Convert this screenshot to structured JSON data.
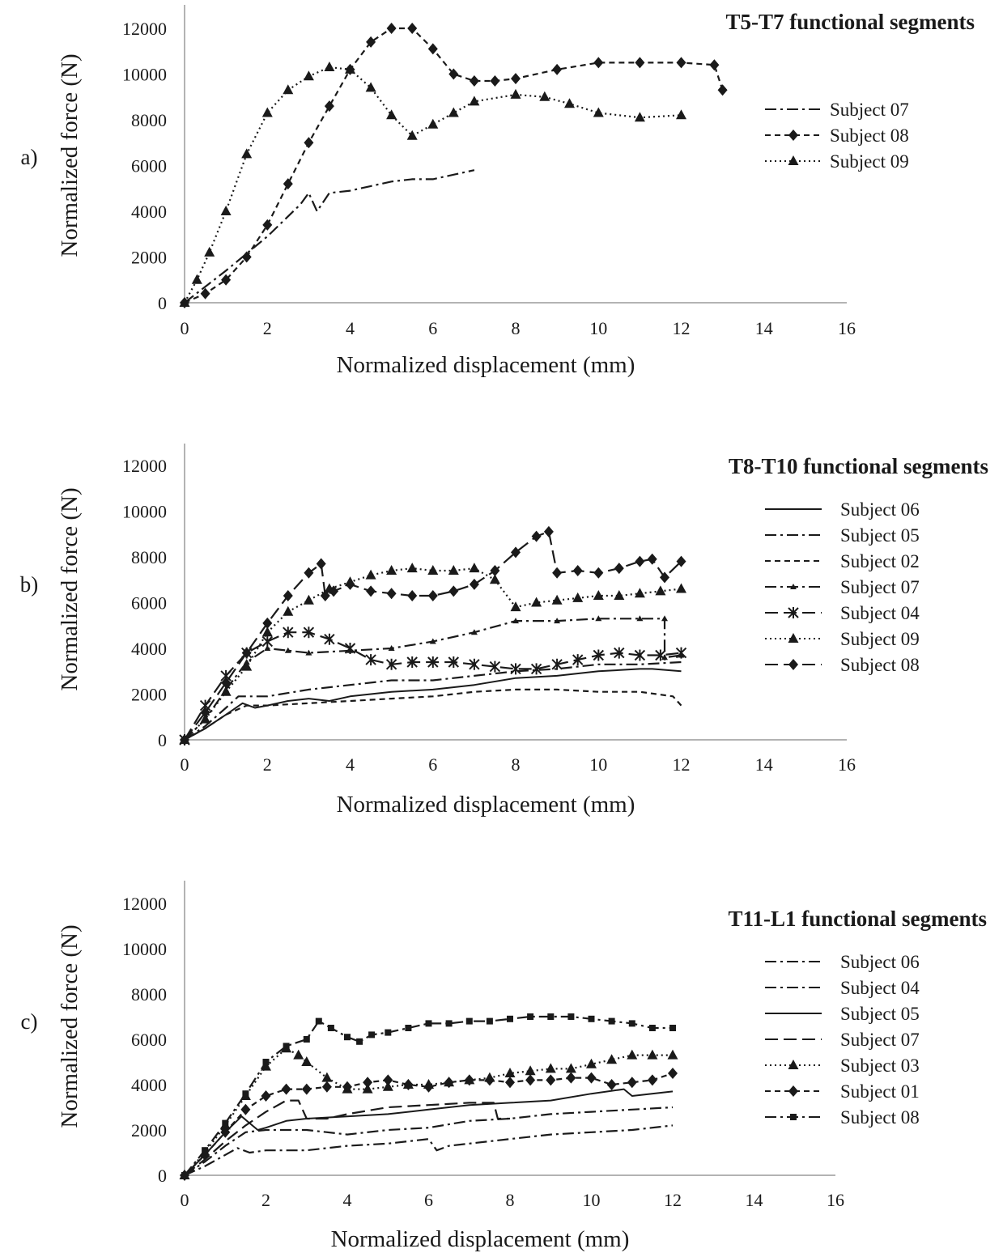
{
  "chart_data": [
    {
      "type": "line",
      "panel_label": "a)",
      "title": "T5-T7 functional segments",
      "xlabel": "Normalized displacement (mm)",
      "ylabel": "Normalized force (N)",
      "xlim": [
        0,
        16
      ],
      "ylim": [
        0,
        12000
      ],
      "x_ticks": [
        "0",
        "2",
        "4",
        "6",
        "8",
        "10",
        "12",
        "14",
        "16"
      ],
      "y_ticks": [
        "0",
        "2000",
        "4000",
        "6000",
        "8000",
        "10000",
        "12000"
      ],
      "grid": false,
      "legend_position": "right",
      "series": [
        {
          "name": "Subject 07",
          "line": "dashdot",
          "marker": "none",
          "x": [
            0,
            1,
            2,
            2.8,
            3.0,
            3.2,
            3.5,
            4.0,
            4.5,
            5.0,
            5.5,
            6.0,
            6.5,
            7.0
          ],
          "y": [
            0,
            1400,
            2900,
            4300,
            4800,
            4000,
            4800,
            4900,
            5100,
            5300,
            5400,
            5400,
            5600,
            5800
          ]
        },
        {
          "name": "Subject 08",
          "line": "dash",
          "marker": "diamond",
          "x": [
            0,
            0.5,
            1.0,
            1.5,
            2.0,
            2.5,
            3.0,
            3.5,
            4.0,
            4.5,
            5.0,
            5.5,
            6.0,
            6.5,
            7.0,
            7.5,
            8.0,
            9.0,
            10.0,
            11.0,
            12.0,
            12.8,
            13.0
          ],
          "y": [
            0,
            400,
            1000,
            2000,
            3400,
            5200,
            7000,
            8600,
            10200,
            11400,
            12000,
            12000,
            11100,
            10000,
            9700,
            9700,
            9800,
            10200,
            10500,
            10500,
            10500,
            10400,
            9300
          ]
        },
        {
          "name": "Subject 09",
          "line": "dot",
          "marker": "triangle",
          "x": [
            0,
            0.3,
            0.6,
            1.0,
            1.5,
            2.0,
            2.5,
            3.0,
            3.5,
            4.0,
            4.5,
            5.0,
            5.5,
            6.0,
            6.5,
            7.0,
            8.0,
            8.7,
            9.3,
            10.0,
            11.0,
            12.0
          ],
          "y": [
            0,
            1000,
            2200,
            4000,
            6500,
            8300,
            9300,
            9900,
            10300,
            10200,
            9400,
            8200,
            7300,
            7800,
            8300,
            8800,
            9100,
            9000,
            8700,
            8300,
            8100,
            8200
          ]
        }
      ]
    },
    {
      "type": "line",
      "panel_label": "b)",
      "title": "T8-T10 functional segments",
      "xlabel": "Normalized displacement (mm)",
      "ylabel": "Normalized force (N)",
      "xlim": [
        0,
        16
      ],
      "ylim": [
        0,
        12000
      ],
      "x_ticks": [
        "0",
        "2",
        "4",
        "6",
        "8",
        "10",
        "12",
        "14",
        "16"
      ],
      "y_ticks": [
        "0",
        "2000",
        "4000",
        "6000",
        "8000",
        "10000",
        "12000"
      ],
      "grid": false,
      "legend_position": "right",
      "series": [
        {
          "name": "Subject 06",
          "line": "solid",
          "marker": "none",
          "x": [
            0,
            0.5,
            1.0,
            1.4,
            1.7,
            2.0,
            2.5,
            3.0,
            3.5,
            4.0,
            5.0,
            6.0,
            7.0,
            8.0,
            9.0,
            10.0,
            11.0,
            11.3,
            12.0
          ],
          "y": [
            0,
            500,
            1100,
            1600,
            1400,
            1500,
            1700,
            1800,
            1700,
            1900,
            2100,
            2200,
            2400,
            2700,
            2800,
            3000,
            3100,
            3100,
            3000
          ]
        },
        {
          "name": "Subject 05",
          "line": "dashdot",
          "marker": "none",
          "x": [
            0,
            0.5,
            1.0,
            1.3,
            1.6,
            2.0,
            3.0,
            4.0,
            5.0,
            6.0,
            7.0,
            8.0,
            9.0,
            10.0,
            11.0,
            12.0
          ],
          "y": [
            0,
            600,
            1400,
            1900,
            1900,
            1900,
            2200,
            2400,
            2600,
            2600,
            2800,
            3000,
            3100,
            3300,
            3300,
            3400
          ]
        },
        {
          "name": "Subject 02",
          "line": "dash",
          "marker": "none",
          "x": [
            0,
            0.5,
            1.0,
            1.5,
            2.0,
            3.0,
            4.0,
            5.0,
            6.0,
            7.0,
            8.0,
            9.0,
            10.0,
            11.0,
            11.8,
            12.0
          ],
          "y": [
            0,
            500,
            1100,
            1500,
            1500,
            1600,
            1700,
            1800,
            1900,
            2100,
            2200,
            2200,
            2100,
            2100,
            1900,
            1500
          ]
        },
        {
          "name": "Subject 07",
          "line": "dashdot",
          "marker": "small-triangle",
          "x": [
            0,
            0.5,
            1.0,
            1.5,
            2.0,
            2.5,
            3.0,
            4.0,
            5.0,
            6.0,
            7.0,
            8.0,
            9.0,
            10.0,
            11.0,
            11.6,
            11.6,
            12.0
          ],
          "y": [
            0,
            900,
            2200,
            3400,
            4000,
            3900,
            3800,
            3900,
            4000,
            4300,
            4700,
            5200,
            5200,
            5300,
            5300,
            5300,
            3600,
            3700
          ]
        },
        {
          "name": "Subject 04",
          "line": "longdash",
          "marker": "asterisk",
          "x": [
            0,
            0.5,
            1.0,
            1.5,
            2.0,
            2.5,
            3.0,
            3.5,
            4.0,
            4.5,
            5.0,
            5.5,
            6.0,
            6.5,
            7.0,
            7.5,
            8.0,
            8.5,
            9.0,
            9.5,
            10.0,
            10.5,
            11.0,
            11.5,
            12.0
          ],
          "y": [
            0,
            1500,
            2800,
            3800,
            4300,
            4700,
            4700,
            4400,
            4000,
            3500,
            3300,
            3400,
            3400,
            3400,
            3300,
            3200,
            3100,
            3100,
            3300,
            3500,
            3700,
            3800,
            3700,
            3700,
            3800
          ]
        },
        {
          "name": "Subject 09",
          "line": "dot",
          "marker": "triangle",
          "x": [
            0,
            0.5,
            1.0,
            1.5,
            2.0,
            2.5,
            3.0,
            3.5,
            4.0,
            4.5,
            5.0,
            5.5,
            6.0,
            6.5,
            7.0,
            7.5,
            8.0,
            8.5,
            9.0,
            9.5,
            10.0,
            10.5,
            11.0,
            11.5,
            12.0
          ],
          "y": [
            0,
            900,
            2100,
            3200,
            4700,
            5600,
            6100,
            6600,
            6900,
            7200,
            7400,
            7500,
            7400,
            7400,
            7500,
            7000,
            5800,
            6000,
            6100,
            6200,
            6300,
            6300,
            6400,
            6500,
            6600
          ]
        },
        {
          "name": "Subject 08",
          "line": "longdash",
          "marker": "diamond",
          "x": [
            0,
            0.5,
            1.0,
            1.5,
            2.0,
            2.5,
            3.0,
            3.3,
            3.4,
            3.6,
            4.0,
            4.5,
            5.0,
            5.5,
            6.0,
            6.5,
            7.0,
            7.5,
            8.0,
            8.5,
            8.8,
            9.0,
            9.5,
            10.0,
            10.5,
            11.0,
            11.3,
            11.6,
            12.0
          ],
          "y": [
            0,
            1200,
            2500,
            3800,
            5100,
            6300,
            7300,
            7700,
            6300,
            6500,
            6800,
            6500,
            6400,
            6300,
            6300,
            6500,
            6800,
            7400,
            8200,
            8900,
            9100,
            7300,
            7400,
            7300,
            7500,
            7800,
            7900,
            7100,
            7800
          ]
        }
      ]
    },
    {
      "type": "line",
      "panel_label": "c)",
      "title": "T11-L1 functional segments",
      "xlabel": "Normalized displacement (mm)",
      "ylabel": "Normalized force (N)",
      "xlim": [
        0,
        16
      ],
      "ylim": [
        0,
        12000
      ],
      "x_ticks": [
        "0",
        "2",
        "4",
        "6",
        "8",
        "10",
        "12",
        "14",
        "16"
      ],
      "y_ticks": [
        "0",
        "2000",
        "4000",
        "6000",
        "8000",
        "10000",
        "12000"
      ],
      "grid": false,
      "legend_position": "right",
      "series": [
        {
          "name": "Subject 06",
          "line": "dashdot",
          "marker": "none",
          "x": [
            0,
            0.5,
            1.0,
            1.3,
            1.6,
            2.0,
            3.0,
            4.0,
            5.0,
            6.0,
            6.2,
            6.5,
            7.0,
            8.0,
            9.0,
            10.0,
            11.0,
            12.0
          ],
          "y": [
            0,
            400,
            900,
            1200,
            1000,
            1100,
            1100,
            1300,
            1400,
            1600,
            1100,
            1300,
            1400,
            1600,
            1800,
            1900,
            2000,
            2200
          ]
        },
        {
          "name": "Subject 04",
          "line": "dashdot",
          "marker": "none",
          "x": [
            0,
            0.5,
            1.0,
            1.5,
            2.0,
            3.0,
            4.0,
            5.0,
            6.0,
            7.0,
            8.0,
            9.0,
            10.0,
            11.0,
            12.0
          ],
          "y": [
            0,
            600,
            1300,
            1900,
            2000,
            2000,
            1800,
            2000,
            2100,
            2400,
            2500,
            2700,
            2800,
            2900,
            3000
          ]
        },
        {
          "name": "Subject 05",
          "line": "solid",
          "marker": "none",
          "x": [
            0,
            0.5,
            1.0,
            1.4,
            1.6,
            1.8,
            2.0,
            2.5,
            3.0,
            4.0,
            5.0,
            6.0,
            7.0,
            8.0,
            9.0,
            10.0,
            10.8,
            11.0,
            12.0
          ],
          "y": [
            0,
            900,
            1900,
            2600,
            2300,
            2000,
            2100,
            2400,
            2500,
            2600,
            2700,
            2900,
            3100,
            3200,
            3300,
            3600,
            3800,
            3500,
            3700
          ]
        },
        {
          "name": "Subject 07",
          "line": "longdash",
          "marker": "none",
          "x": [
            0,
            0.5,
            1.0,
            1.5,
            2.0,
            2.5,
            2.8,
            3.0,
            3.5,
            4.0,
            5.0,
            6.0,
            7.0,
            7.6,
            7.7,
            8.0
          ],
          "y": [
            0,
            700,
            1500,
            2200,
            2800,
            3300,
            3300,
            2500,
            2500,
            2700,
            3000,
            3100,
            3200,
            3200,
            2500,
            2500
          ]
        },
        {
          "name": "Subject 03",
          "line": "dot",
          "marker": "triangle",
          "x": [
            0,
            0.5,
            1.0,
            1.5,
            2.0,
            2.5,
            2.8,
            3.0,
            3.5,
            4.0,
            4.5,
            5.0,
            5.5,
            6.0,
            6.5,
            7.0,
            7.5,
            8.0,
            8.5,
            9.0,
            9.5,
            10.0,
            10.5,
            11.0,
            11.5,
            12.0
          ],
          "y": [
            0,
            1000,
            2200,
            3500,
            4800,
            5600,
            5300,
            5000,
            4300,
            3800,
            3800,
            3900,
            4000,
            4000,
            4100,
            4200,
            4300,
            4500,
            4600,
            4700,
            4700,
            4900,
            5100,
            5300,
            5300,
            5300
          ]
        },
        {
          "name": "Subject 01",
          "line": "dash",
          "marker": "diamond",
          "x": [
            0,
            0.5,
            1.0,
            1.5,
            2.0,
            2.5,
            3.0,
            3.5,
            4.0,
            4.5,
            5.0,
            5.5,
            6.0,
            6.5,
            7.0,
            7.5,
            8.0,
            8.5,
            9.0,
            9.5,
            10.0,
            10.5,
            11.0,
            11.5,
            12.0
          ],
          "y": [
            0,
            900,
            1900,
            2900,
            3500,
            3800,
            3800,
            3900,
            3900,
            4100,
            4200,
            4000,
            3900,
            4100,
            4200,
            4200,
            4100,
            4200,
            4200,
            4300,
            4300,
            4000,
            4100,
            4200,
            4500
          ]
        },
        {
          "name": "Subject 08",
          "line": "dashdot",
          "marker": "square",
          "x": [
            0,
            0.5,
            1.0,
            1.5,
            2.0,
            2.5,
            3.0,
            3.3,
            3.6,
            4.0,
            4.3,
            4.6,
            5.0,
            5.5,
            6.0,
            6.5,
            7.0,
            7.5,
            8.0,
            8.5,
            9.0,
            9.5,
            10.0,
            10.5,
            11.0,
            11.5,
            12.0
          ],
          "y": [
            0,
            1100,
            2300,
            3600,
            5000,
            5700,
            6000,
            6800,
            6500,
            6100,
            5900,
            6200,
            6300,
            6500,
            6700,
            6700,
            6800,
            6800,
            6900,
            7000,
            7000,
            7000,
            6900,
            6800,
            6700,
            6500,
            6500
          ]
        }
      ]
    }
  ]
}
